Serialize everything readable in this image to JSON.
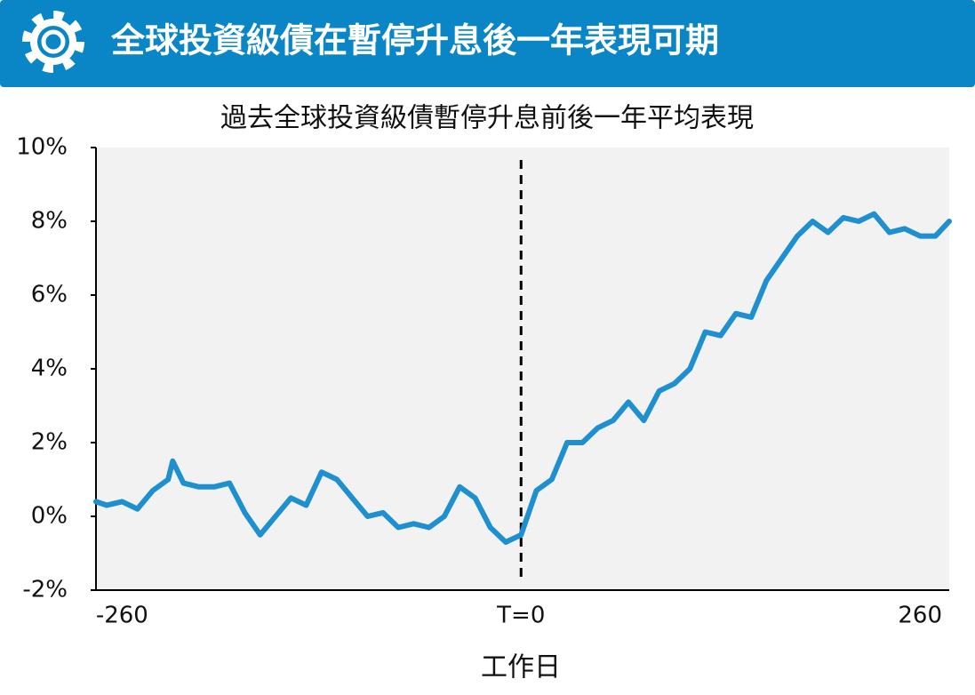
{
  "header": {
    "title": "全球投資級債在暫停升息後一年表現可期"
  },
  "chart_data": {
    "type": "line",
    "title": "過去全球投資級債暫停升息前後一年平均表現",
    "x_label": "工作日",
    "x": [
      -277,
      -270,
      -260,
      -250,
      -240,
      -230,
      -227,
      -220,
      -210,
      -200,
      -190,
      -180,
      -170,
      -160,
      -150,
      -140,
      -130,
      -120,
      -110,
      -100,
      -90,
      -80,
      -70,
      -60,
      -50,
      -40,
      -30,
      -20,
      -10,
      0,
      10,
      20,
      30,
      40,
      50,
      60,
      70,
      80,
      90,
      100,
      110,
      120,
      130,
      140,
      150,
      160,
      170,
      180,
      190,
      200,
      210,
      220,
      230,
      240,
      250,
      260,
      270,
      279
    ],
    "values": [
      0.4,
      0.3,
      0.4,
      0.2,
      0.7,
      1.0,
      1.5,
      0.9,
      0.8,
      0.8,
      0.9,
      0.1,
      -0.5,
      0.0,
      0.5,
      0.3,
      1.2,
      1.0,
      0.5,
      0.0,
      0.1,
      -0.3,
      -0.2,
      -0.3,
      0.0,
      0.8,
      0.5,
      -0.3,
      -0.7,
      -0.5,
      0.7,
      1.0,
      2.0,
      2.0,
      2.4,
      2.6,
      3.1,
      2.6,
      3.4,
      3.6,
      4.0,
      5.0,
      4.9,
      5.5,
      5.4,
      6.4,
      7.0,
      7.6,
      8.0,
      7.7,
      8.1,
      8.0,
      8.2,
      7.7,
      7.8,
      7.6,
      7.6,
      8.0
    ],
    "color": "#1e8fcf",
    "xlim": [
      -277,
      279
    ],
    "xticks": [
      -260,
      {
        "value": 0,
        "label": "T=0"
      },
      260
    ],
    "ylim": [
      -2,
      10
    ],
    "yticks": [
      {
        "value": -2,
        "label": "-2%"
      },
      {
        "value": 0,
        "label": "0%"
      },
      {
        "value": 2,
        "label": "2%"
      },
      {
        "value": 4,
        "label": "4%"
      },
      {
        "value": 6,
        "label": "6%"
      },
      {
        "value": 8,
        "label": "8%"
      },
      {
        "value": 10,
        "label": "10%"
      }
    ]
  }
}
